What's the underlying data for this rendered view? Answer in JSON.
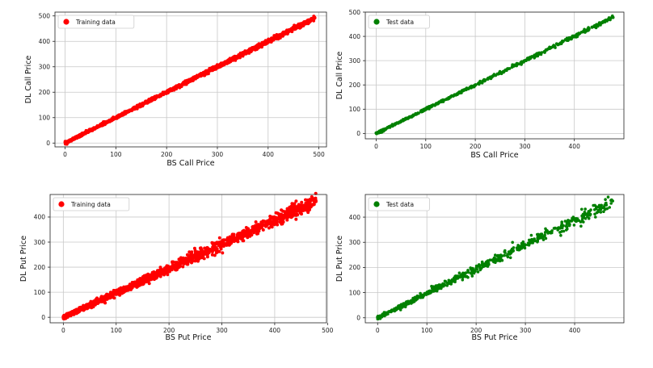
{
  "chart_data": [
    {
      "type": "scatter",
      "title": "",
      "xlabel": "BS Call Price",
      "ylabel": "DL Call Price",
      "xlim": [
        -20,
        515
      ],
      "ylim": [
        -15,
        515
      ],
      "xticks": [
        0,
        100,
        200,
        300,
        400,
        500
      ],
      "yticks": [
        0,
        100,
        200,
        300,
        400,
        500
      ],
      "grid": true,
      "legend": {
        "position": "top-left",
        "entries": [
          "Training data"
        ]
      },
      "series": [
        {
          "name": "Training data",
          "color": "#ff0000",
          "trend": {
            "x_start": 0,
            "x_end": 492,
            "slope": 1.0,
            "intercept": 0
          },
          "x": [
            0,
            5,
            10,
            20,
            30,
            50,
            75,
            100,
            125,
            150,
            175,
            200,
            225,
            250,
            275,
            300,
            325,
            350,
            375,
            400,
            425,
            450,
            475,
            492
          ],
          "y": [
            2,
            6,
            12,
            22,
            32,
            52,
            76,
            100,
            124,
            150,
            176,
            200,
            224,
            250,
            276,
            300,
            324,
            350,
            376,
            400,
            424,
            450,
            474,
            492
          ]
        }
      ]
    },
    {
      "type": "scatter",
      "title": "",
      "xlabel": "BS Call Price",
      "ylabel": "DL Call Price",
      "xlim": [
        -22,
        500
      ],
      "ylim": [
        -22,
        500
      ],
      "xticks": [
        0,
        100,
        200,
        300,
        400
      ],
      "yticks": [
        0,
        100,
        200,
        300,
        400,
        500
      ],
      "grid": true,
      "legend": {
        "position": "top-left",
        "entries": [
          "Test data"
        ]
      },
      "series": [
        {
          "name": "Test data",
          "color": "#008000",
          "trend": {
            "x_start": 0,
            "x_end": 478,
            "slope": 1.0,
            "intercept": 0
          },
          "x": [
            0,
            5,
            10,
            25,
            50,
            75,
            100,
            125,
            150,
            175,
            200,
            225,
            250,
            275,
            300,
            325,
            350,
            375,
            400,
            425,
            450,
            478
          ],
          "y": [
            2,
            6,
            12,
            26,
            50,
            76,
            100,
            124,
            150,
            176,
            200,
            224,
            250,
            276,
            300,
            324,
            350,
            376,
            400,
            424,
            450,
            478
          ]
        }
      ]
    },
    {
      "type": "scatter",
      "title": "",
      "xlabel": "BS Put Price",
      "ylabel": "DL Put Price",
      "xlim": [
        -25,
        498
      ],
      "ylim": [
        -22,
        490
      ],
      "xticks": [
        0,
        100,
        200,
        300,
        400,
        500
      ],
      "yticks": [
        0,
        100,
        200,
        300,
        400
      ],
      "grid": true,
      "legend": {
        "position": "top-left",
        "entries": [
          "Training data"
        ]
      },
      "series": [
        {
          "name": "Training data",
          "color": "#ff0000",
          "trend": {
            "x_start": 0,
            "x_end": 478,
            "slope": 0.97,
            "intercept": 0
          },
          "x": [
            0,
            5,
            10,
            25,
            50,
            75,
            100,
            125,
            150,
            175,
            200,
            225,
            250,
            275,
            300,
            325,
            350,
            375,
            400,
            425,
            450,
            478
          ],
          "y": [
            3,
            7,
            12,
            25,
            50,
            75,
            98,
            122,
            146,
            170,
            194,
            218,
            242,
            266,
            290,
            316,
            340,
            364,
            388,
            412,
            438,
            462
          ]
        }
      ]
    },
    {
      "type": "scatter",
      "title": "",
      "xlabel": "BS Put Price",
      "ylabel": "DL Put Price",
      "xlim": [
        -25,
        500
      ],
      "ylim": [
        -20,
        490
      ],
      "xticks": [
        0,
        100,
        200,
        300,
        400
      ],
      "yticks": [
        0,
        100,
        200,
        300,
        400
      ],
      "grid": true,
      "legend": {
        "position": "top-left",
        "entries": [
          "Test data"
        ]
      },
      "series": [
        {
          "name": "Test data",
          "color": "#008000",
          "trend": {
            "x_start": 0,
            "x_end": 478,
            "slope": 0.97,
            "intercept": 0
          },
          "x": [
            0,
            5,
            10,
            25,
            50,
            75,
            100,
            125,
            150,
            175,
            200,
            225,
            250,
            275,
            300,
            325,
            350,
            375,
            400,
            425,
            450,
            475
          ],
          "y": [
            3,
            7,
            12,
            25,
            50,
            75,
            98,
            122,
            146,
            170,
            194,
            218,
            242,
            266,
            290,
            316,
            340,
            364,
            388,
            412,
            440,
            468
          ]
        }
      ]
    }
  ]
}
